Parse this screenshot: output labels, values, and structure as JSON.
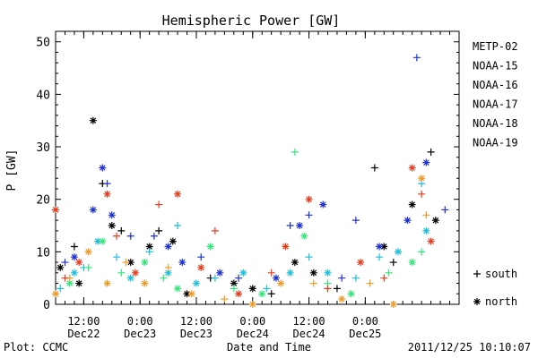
{
  "chart_data": {
    "type": "scatter",
    "title": "Hemispheric Power [GW]",
    "xlabel": "Date and Time",
    "ylabel": "P [GW]",
    "xlim": [
      "2011-12-22T06:00",
      "2011-12-25T20:00"
    ],
    "ylim": [
      0,
      52
    ],
    "yticks": [
      0,
      10,
      20,
      30,
      40,
      50
    ],
    "xticks": [
      {
        "time": "2011-12-22T12:00",
        "line1": "12:00",
        "line2": "Dec22"
      },
      {
        "time": "2011-12-23T00:00",
        "line1": "0:00",
        "line2": "Dec23"
      },
      {
        "time": "2011-12-23T12:00",
        "line1": "12:00",
        "line2": "Dec23"
      },
      {
        "time": "2011-12-24T00:00",
        "line1": "0:00",
        "line2": "Dec24"
      },
      {
        "time": "2011-12-24T12:00",
        "line1": "12:00",
        "line2": "Dec24"
      },
      {
        "time": "2011-12-25T00:00",
        "line1": "0:00",
        "line2": "Dec25"
      }
    ],
    "legend_position": "right",
    "marker_legend": [
      {
        "symbol": "+",
        "label": "south"
      },
      {
        "symbol": "*",
        "label": "north"
      }
    ],
    "series": [
      {
        "name": "METP-02",
        "color": "#000000",
        "points": [
          {
            "x": "2011-12-22T07:00",
            "y": 7,
            "m": "*"
          },
          {
            "x": "2011-12-22T10:00",
            "y": 11,
            "m": "+"
          },
          {
            "x": "2011-12-22T11:00",
            "y": 4,
            "m": "*"
          },
          {
            "x": "2011-12-22T14:00",
            "y": 35,
            "m": "*"
          },
          {
            "x": "2011-12-22T16:00",
            "y": 23,
            "m": "+"
          },
          {
            "x": "2011-12-22T18:00",
            "y": 15,
            "m": "*"
          },
          {
            "x": "2011-12-22T20:00",
            "y": 14,
            "m": "+"
          },
          {
            "x": "2011-12-22T22:00",
            "y": 8,
            "m": "*"
          },
          {
            "x": "2011-12-23T02:00",
            "y": 11,
            "m": "*"
          },
          {
            "x": "2011-12-23T04:00",
            "y": 14,
            "m": "+"
          },
          {
            "x": "2011-12-23T07:00",
            "y": 12,
            "m": "*"
          },
          {
            "x": "2011-12-23T10:00",
            "y": 2,
            "m": "*"
          },
          {
            "x": "2011-12-23T15:00",
            "y": 5,
            "m": "+"
          },
          {
            "x": "2011-12-23T20:00",
            "y": 4,
            "m": "*"
          },
          {
            "x": "2011-12-24T00:00",
            "y": 3,
            "m": "*"
          },
          {
            "x": "2011-12-24T04:00",
            "y": 2,
            "m": "+"
          },
          {
            "x": "2011-12-24T09:00",
            "y": 8,
            "m": "*"
          },
          {
            "x": "2011-12-24T13:00",
            "y": 6,
            "m": "*"
          },
          {
            "x": "2011-12-24T18:00",
            "y": 3,
            "m": "+"
          },
          {
            "x": "2011-12-25T02:00",
            "y": 26,
            "m": "+"
          },
          {
            "x": "2011-12-25T04:00",
            "y": 11,
            "m": "*"
          },
          {
            "x": "2011-12-25T06:00",
            "y": 8,
            "m": "+"
          },
          {
            "x": "2011-12-25T10:00",
            "y": 19,
            "m": "*"
          },
          {
            "x": "2011-12-25T14:00",
            "y": 29,
            "m": "+"
          },
          {
            "x": "2011-12-25T15:00",
            "y": 16,
            "m": "*"
          }
        ]
      },
      {
        "name": "NOAA-15",
        "color": "#1e30d2",
        "points": [
          {
            "x": "2011-12-22T08:00",
            "y": 8,
            "m": "+"
          },
          {
            "x": "2011-12-22T10:00",
            "y": 9,
            "m": "*"
          },
          {
            "x": "2011-12-22T14:00",
            "y": 18,
            "m": "*"
          },
          {
            "x": "2011-12-22T16:00",
            "y": 26,
            "m": "*"
          },
          {
            "x": "2011-12-22T17:00",
            "y": 23,
            "m": "+"
          },
          {
            "x": "2011-12-22T18:00",
            "y": 17,
            "m": "*"
          },
          {
            "x": "2011-12-22T22:00",
            "y": 13,
            "m": "+"
          },
          {
            "x": "2011-12-23T03:00",
            "y": 13,
            "m": "+"
          },
          {
            "x": "2011-12-23T06:00",
            "y": 11,
            "m": "*"
          },
          {
            "x": "2011-12-23T09:00",
            "y": 8,
            "m": "*"
          },
          {
            "x": "2011-12-23T13:00",
            "y": 9,
            "m": "+"
          },
          {
            "x": "2011-12-23T17:00",
            "y": 6,
            "m": "*"
          },
          {
            "x": "2011-12-23T21:00",
            "y": 5,
            "m": "+"
          },
          {
            "x": "2011-12-24T05:00",
            "y": 5,
            "m": "*"
          },
          {
            "x": "2011-12-24T08:00",
            "y": 15,
            "m": "+"
          },
          {
            "x": "2011-12-24T10:00",
            "y": 15,
            "m": "*"
          },
          {
            "x": "2011-12-24T12:00",
            "y": 17,
            "m": "+"
          },
          {
            "x": "2011-12-24T15:00",
            "y": 19,
            "m": "*"
          },
          {
            "x": "2011-12-24T19:00",
            "y": 5,
            "m": "+"
          },
          {
            "x": "2011-12-24T22:00",
            "y": 16,
            "m": "+"
          },
          {
            "x": "2011-12-25T03:00",
            "y": 11,
            "m": "*"
          },
          {
            "x": "2011-12-25T09:00",
            "y": 16,
            "m": "*"
          },
          {
            "x": "2011-12-25T11:00",
            "y": 47,
            "m": "+"
          },
          {
            "x": "2011-12-25T13:00",
            "y": 27,
            "m": "*"
          },
          {
            "x": "2011-12-25T17:00",
            "y": 18,
            "m": "+"
          }
        ]
      },
      {
        "name": "NOAA-16",
        "color": "#1ebedc",
        "points": [
          {
            "x": "2011-12-22T07:00",
            "y": 3,
            "m": "+"
          },
          {
            "x": "2011-12-22T10:00",
            "y": 6,
            "m": "*"
          },
          {
            "x": "2011-12-22T12:00",
            "y": 7,
            "m": "+"
          },
          {
            "x": "2011-12-22T15:00",
            "y": 12,
            "m": "*"
          },
          {
            "x": "2011-12-22T19:00",
            "y": 9,
            "m": "+"
          },
          {
            "x": "2011-12-22T22:00",
            "y": 5,
            "m": "*"
          },
          {
            "x": "2011-12-23T02:00",
            "y": 10,
            "m": "+"
          },
          {
            "x": "2011-12-23T06:00",
            "y": 6,
            "m": "*"
          },
          {
            "x": "2011-12-23T08:00",
            "y": 15,
            "m": "+"
          },
          {
            "x": "2011-12-23T12:00",
            "y": 4,
            "m": "*"
          },
          {
            "x": "2011-12-23T16:00",
            "y": 5,
            "m": "+"
          },
          {
            "x": "2011-12-23T22:00",
            "y": 6,
            "m": "*"
          },
          {
            "x": "2011-12-24T03:00",
            "y": 3,
            "m": "+"
          },
          {
            "x": "2011-12-24T08:00",
            "y": 6,
            "m": "*"
          },
          {
            "x": "2011-12-24T12:00",
            "y": 9,
            "m": "+"
          },
          {
            "x": "2011-12-24T16:00",
            "y": 6,
            "m": "*"
          },
          {
            "x": "2011-12-24T22:00",
            "y": 5,
            "m": "+"
          },
          {
            "x": "2011-12-25T03:00",
            "y": 9,
            "m": "+"
          },
          {
            "x": "2011-12-25T07:00",
            "y": 10,
            "m": "*"
          },
          {
            "x": "2011-12-25T12:00",
            "y": 23,
            "m": "+"
          },
          {
            "x": "2011-12-25T13:00",
            "y": 14,
            "m": "*"
          }
        ]
      },
      {
        "name": "NOAA-17",
        "color": "#32e678",
        "points": [
          {
            "x": "2011-12-22T09:00",
            "y": 4,
            "m": "*"
          },
          {
            "x": "2011-12-22T13:00",
            "y": 7,
            "m": "+"
          },
          {
            "x": "2011-12-22T16:00",
            "y": 12,
            "m": "*"
          },
          {
            "x": "2011-12-22T20:00",
            "y": 6,
            "m": "+"
          },
          {
            "x": "2011-12-23T01:00",
            "y": 8,
            "m": "*"
          },
          {
            "x": "2011-12-23T05:00",
            "y": 5,
            "m": "+"
          },
          {
            "x": "2011-12-23T08:00",
            "y": 3,
            "m": "*"
          },
          {
            "x": "2011-12-23T15:00",
            "y": 11,
            "m": "*"
          },
          {
            "x": "2011-12-23T20:00",
            "y": 3,
            "m": "+"
          },
          {
            "x": "2011-12-24T02:00",
            "y": 2,
            "m": "*"
          },
          {
            "x": "2011-12-24T09:00",
            "y": 29,
            "m": "+"
          },
          {
            "x": "2011-12-24T11:00",
            "y": 13,
            "m": "*"
          },
          {
            "x": "2011-12-24T16:00",
            "y": 4,
            "m": "+"
          },
          {
            "x": "2011-12-24T21:00",
            "y": 2,
            "m": "*"
          },
          {
            "x": "2011-12-25T05:00",
            "y": 6,
            "m": "+"
          },
          {
            "x": "2011-12-25T10:00",
            "y": 8,
            "m": "*"
          },
          {
            "x": "2011-12-25T12:00",
            "y": 10,
            "m": "+"
          }
        ]
      },
      {
        "name": "NOAA-18",
        "color": "#f09a28",
        "points": [
          {
            "x": "2011-12-22T06:00",
            "y": 2,
            "m": "*"
          },
          {
            "x": "2011-12-22T09:00",
            "y": 5,
            "m": "+"
          },
          {
            "x": "2011-12-22T13:00",
            "y": 10,
            "m": "*"
          },
          {
            "x": "2011-12-22T17:00",
            "y": 4,
            "m": "*"
          },
          {
            "x": "2011-12-22T21:00",
            "y": 8,
            "m": "+"
          },
          {
            "x": "2011-12-23T01:00",
            "y": 4,
            "m": "*"
          },
          {
            "x": "2011-12-23T06:00",
            "y": 7,
            "m": "+"
          },
          {
            "x": "2011-12-23T11:00",
            "y": 2,
            "m": "*"
          },
          {
            "x": "2011-12-23T18:00",
            "y": 1,
            "m": "+"
          },
          {
            "x": "2011-12-24T00:00",
            "y": 0,
            "m": "*"
          },
          {
            "x": "2011-12-24T06:00",
            "y": 4,
            "m": "*"
          },
          {
            "x": "2011-12-24T13:00",
            "y": 4,
            "m": "+"
          },
          {
            "x": "2011-12-24T19:00",
            "y": 1,
            "m": "*"
          },
          {
            "x": "2011-12-25T01:00",
            "y": 4,
            "m": "+"
          },
          {
            "x": "2011-12-25T06:00",
            "y": 0,
            "m": "*"
          },
          {
            "x": "2011-12-25T12:00",
            "y": 24,
            "m": "*"
          },
          {
            "x": "2011-12-25T13:00",
            "y": 17,
            "m": "+"
          }
        ]
      },
      {
        "name": "NOAA-19",
        "color": "#e63c1e",
        "points": [
          {
            "x": "2011-12-22T06:00",
            "y": 18,
            "m": "*"
          },
          {
            "x": "2011-12-22T08:00",
            "y": 5,
            "m": "+"
          },
          {
            "x": "2011-12-22T11:00",
            "y": 8,
            "m": "*"
          },
          {
            "x": "2011-12-22T17:00",
            "y": 21,
            "m": "*"
          },
          {
            "x": "2011-12-22T19:00",
            "y": 13,
            "m": "+"
          },
          {
            "x": "2011-12-22T23:00",
            "y": 6,
            "m": "*"
          },
          {
            "x": "2011-12-23T04:00",
            "y": 19,
            "m": "+"
          },
          {
            "x": "2011-12-23T08:00",
            "y": 21,
            "m": "*"
          },
          {
            "x": "2011-12-23T13:00",
            "y": 7,
            "m": "*"
          },
          {
            "x": "2011-12-23T16:00",
            "y": 14,
            "m": "+"
          },
          {
            "x": "2011-12-23T21:00",
            "y": 2,
            "m": "*"
          },
          {
            "x": "2011-12-24T04:00",
            "y": 6,
            "m": "+"
          },
          {
            "x": "2011-12-24T07:00",
            "y": 11,
            "m": "*"
          },
          {
            "x": "2011-12-24T12:00",
            "y": 20,
            "m": "*"
          },
          {
            "x": "2011-12-24T16:00",
            "y": 3,
            "m": "+"
          },
          {
            "x": "2011-12-24T23:00",
            "y": 8,
            "m": "*"
          },
          {
            "x": "2011-12-25T04:00",
            "y": 5,
            "m": "+"
          },
          {
            "x": "2011-12-25T10:00",
            "y": 26,
            "m": "*"
          },
          {
            "x": "2011-12-25T12:00",
            "y": 21,
            "m": "+"
          },
          {
            "x": "2011-12-25T14:00",
            "y": 12,
            "m": "*"
          }
        ]
      }
    ]
  },
  "footer": {
    "source": "Plot: CCMC",
    "timestamp": "2011/12/25 10:10:07"
  }
}
